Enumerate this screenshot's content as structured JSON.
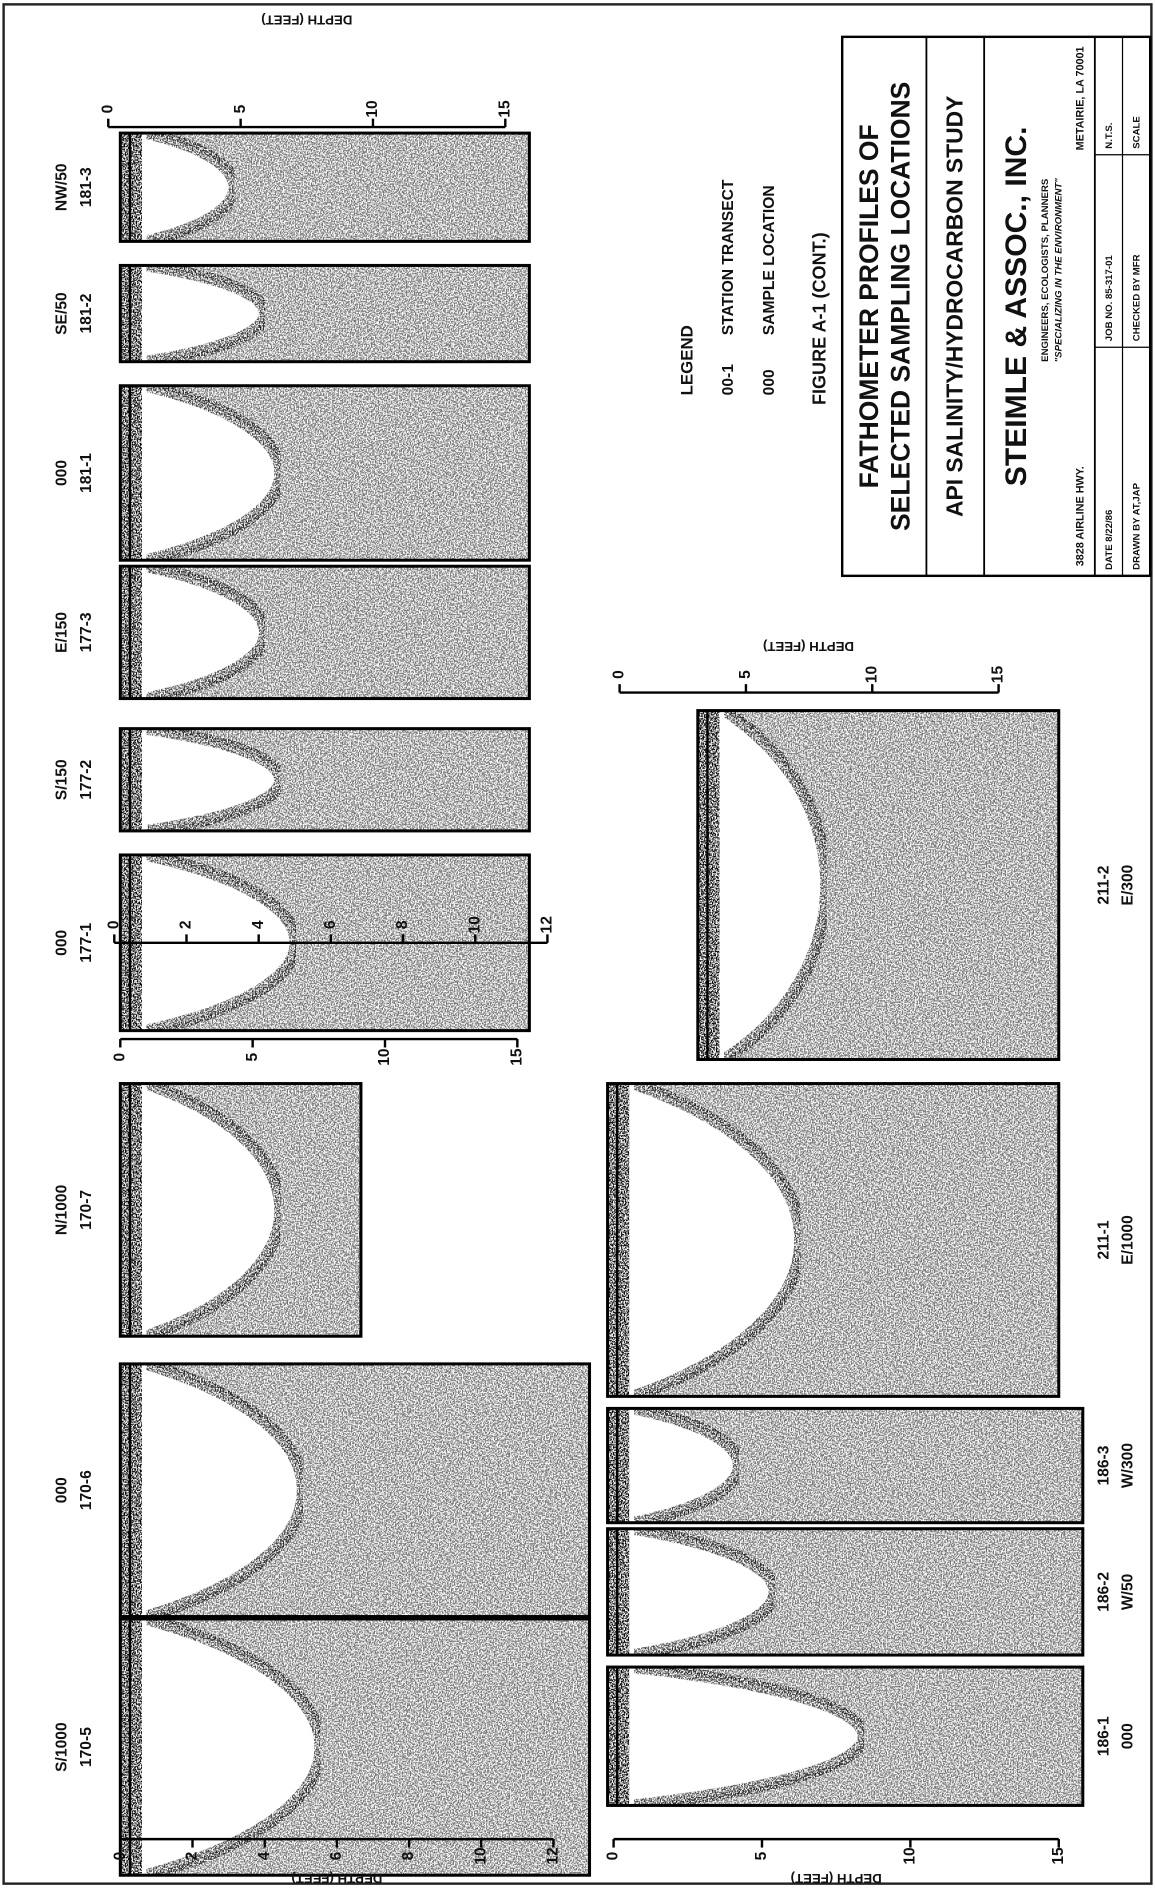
{
  "axes": [
    {
      "label": "DEPTH (FEET)",
      "ticks": [
        0,
        2,
        4,
        6,
        8,
        10,
        12
      ]
    },
    {
      "ticks": [
        0,
        2,
        4,
        6,
        8,
        10,
        12
      ]
    },
    {
      "ticks": [
        0,
        5,
        10,
        15
      ]
    },
    {
      "label": "DEPTH (FEET)",
      "ticks": [
        0,
        5,
        10,
        15
      ]
    },
    {
      "label": "DEPTH (FEET)",
      "ticks": [
        0,
        5,
        10,
        15
      ]
    },
    {
      "label": "DEPTH (FEET)",
      "ticks": [
        0,
        5,
        10,
        15
      ]
    }
  ],
  "profiles": [
    {
      "line1": "S/1000",
      "line2": "170-5"
    },
    {
      "line1": "000",
      "line2": "170-6"
    },
    {
      "line1": "N/1000",
      "line2": "170-7"
    },
    {
      "line1": "000",
      "line2": "177-1"
    },
    {
      "line1": "S/150",
      "line2": "177-2"
    },
    {
      "line1": "E/150",
      "line2": "177-3"
    },
    {
      "line1": "000",
      "line2": "181-1"
    },
    {
      "line1": "SE/50",
      "line2": "181-2"
    },
    {
      "line1": "NW/50",
      "line2": "181-3"
    },
    {
      "line1": "186-1",
      "line2": "000"
    },
    {
      "line1": "186-2",
      "line2": "W/50"
    },
    {
      "line1": "186-3",
      "line2": "W/300"
    },
    {
      "line1": "211-1",
      "line2": "E/1000"
    },
    {
      "line1": "211-2",
      "line2": "E/300"
    }
  ],
  "legend": {
    "title": "LEGEND",
    "items": [
      {
        "symbol": "00-1",
        "text": "STATION TRANSECT"
      },
      {
        "symbol": "000",
        "text": "SAMPLE LOCATION"
      }
    ]
  },
  "figure": "FIGURE A-1 (CONT.)",
  "title_block": {
    "title_lines": [
      "FATHOMETER PROFILES OF",
      "SELECTED SAMPLING LOCATIONS"
    ],
    "study": "API SALINITY/HYDROCARBON STUDY",
    "company": "STEIMLE & ASSOC., INC.",
    "tagline": "ENGINEERS, ECOLOGISTS, PLANNERS",
    "motto": "\"SPECIALIZING IN THE ENVIRONMENT\"",
    "address": "3828 AIRLINE HWY.",
    "city": "METAIRIE, LA 70001",
    "cells": [
      [
        "DATE 8/22/86",
        "JOB NO. 85-317-01",
        "N.T.S."
      ],
      [
        "DRAWN BY AT,JAP",
        "CHECKED BY MFR",
        "SCALE"
      ]
    ]
  }
}
